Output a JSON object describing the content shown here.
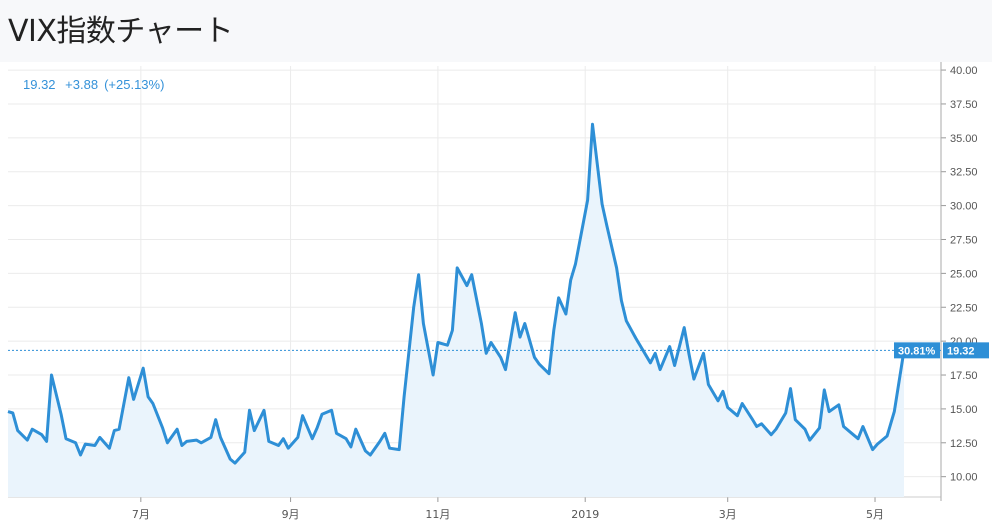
{
  "title": "VIX指数チャート",
  "readout": {
    "value": "19.32",
    "change": "+3.88",
    "pct": "(+25.13%)"
  },
  "badges": {
    "pct": "30.81%",
    "value": "19.32"
  },
  "colors": {
    "line": "#2e8fd6",
    "fill": "#eaf4fc",
    "grid": "#e8e8e8",
    "badge": "#2e8fd6",
    "text": "#3592d9"
  },
  "chart_data": {
    "type": "area",
    "yticks": [
      "10.00",
      "12.50",
      "15.00",
      "17.50",
      "20.00",
      "22.50",
      "25.00",
      "27.50",
      "30.00",
      "32.50",
      "35.00",
      "37.50",
      "40.00"
    ],
    "ylim": [
      8.5,
      40.3
    ],
    "xlabels": [
      "7月",
      "9月",
      "11月",
      "2019",
      "3月",
      "5月"
    ],
    "x": [
      "2018-05-07",
      "2018-05-09",
      "2018-05-11",
      "2018-05-15",
      "2018-05-17",
      "2018-05-21",
      "2018-05-23",
      "2018-05-25",
      "2018-05-29",
      "2018-05-31",
      "2018-06-04",
      "2018-06-06",
      "2018-06-08",
      "2018-06-12",
      "2018-06-14",
      "2018-06-18",
      "2018-06-20",
      "2018-06-22",
      "2018-06-26",
      "2018-06-28",
      "2018-07-02",
      "2018-07-04",
      "2018-07-06",
      "2018-07-10",
      "2018-07-12",
      "2018-07-16",
      "2018-07-18",
      "2018-07-20",
      "2018-07-24",
      "2018-07-26",
      "2018-07-30",
      "2018-08-01",
      "2018-08-03",
      "2018-08-07",
      "2018-08-09",
      "2018-08-13",
      "2018-08-15",
      "2018-08-17",
      "2018-08-21",
      "2018-08-23",
      "2018-08-27",
      "2018-08-29",
      "2018-08-31",
      "2018-09-04",
      "2018-09-06",
      "2018-09-10",
      "2018-09-12",
      "2018-09-14",
      "2018-09-18",
      "2018-09-20",
      "2018-09-24",
      "2018-09-26",
      "2018-09-28",
      "2018-10-02",
      "2018-10-04",
      "2018-10-08",
      "2018-10-10",
      "2018-10-12",
      "2018-10-16",
      "2018-10-18",
      "2018-10-22",
      "2018-10-24",
      "2018-10-26",
      "2018-10-30",
      "2018-11-01",
      "2018-11-05",
      "2018-11-07",
      "2018-11-09",
      "2018-11-13",
      "2018-11-15",
      "2018-11-19",
      "2018-11-21",
      "2018-11-23",
      "2018-11-27",
      "2018-11-29",
      "2018-12-03",
      "2018-12-05",
      "2018-12-07",
      "2018-12-11",
      "2018-12-13",
      "2018-12-17",
      "2018-12-19",
      "2018-12-21",
      "2018-12-24",
      "2018-12-26",
      "2018-12-28",
      "2019-01-02",
      "2019-01-04",
      "2019-01-08",
      "2019-01-10",
      "2019-01-14",
      "2019-01-16",
      "2019-01-18",
      "2019-01-22",
      "2019-01-24",
      "2019-01-28",
      "2019-01-30",
      "2019-02-01",
      "2019-02-05",
      "2019-02-07",
      "2019-02-11",
      "2019-02-13",
      "2019-02-15",
      "2019-02-19",
      "2019-02-21",
      "2019-02-25",
      "2019-02-27",
      "2019-03-01",
      "2019-03-05",
      "2019-03-07",
      "2019-03-11",
      "2019-03-13",
      "2019-03-15",
      "2019-03-19",
      "2019-03-21",
      "2019-03-25",
      "2019-03-27",
      "2019-03-29",
      "2019-04-02",
      "2019-04-04",
      "2019-04-08",
      "2019-04-10",
      "2019-04-12",
      "2019-04-16",
      "2019-04-18",
      "2019-04-22",
      "2019-04-24",
      "2019-04-26",
      "2019-04-30",
      "2019-05-02",
      "2019-05-06",
      "2019-05-09",
      "2019-05-13"
    ],
    "values": [
      14.8,
      14.7,
      13.4,
      12.7,
      13.5,
      13.1,
      12.6,
      17.5,
      14.6,
      12.8,
      12.5,
      11.6,
      12.4,
      12.3,
      12.9,
      12.1,
      13.4,
      13.5,
      17.3,
      15.7,
      18.0,
      15.9,
      15.4,
      13.6,
      12.5,
      13.5,
      12.3,
      12.6,
      12.7,
      12.5,
      12.9,
      14.2,
      12.9,
      11.3,
      11.0,
      11.8,
      14.9,
      13.4,
      14.9,
      12.6,
      12.3,
      12.8,
      12.1,
      12.9,
      14.5,
      12.8,
      13.6,
      14.6,
      14.9,
      13.2,
      12.8,
      12.2,
      13.5,
      11.9,
      11.6,
      12.6,
      13.2,
      12.1,
      12.0,
      15.9,
      22.5,
      24.9,
      21.3,
      17.5,
      19.9,
      19.7,
      20.8,
      25.4,
      24.1,
      24.9,
      21.3,
      19.1,
      19.9,
      18.8,
      17.9,
      22.1,
      20.3,
      21.3,
      18.8,
      18.3,
      17.6,
      20.8,
      23.2,
      22.0,
      24.5,
      25.7,
      30.4,
      36.0,
      30.1,
      28.5,
      25.4,
      23.0,
      21.5,
      20.2,
      19.6,
      18.4,
      19.1,
      17.9,
      19.6,
      18.2,
      21.0,
      19.0,
      17.2,
      19.1,
      16.8,
      15.6,
      16.3,
      15.1,
      14.5,
      15.4,
      14.3,
      13.7,
      13.9,
      13.1,
      13.5,
      14.7,
      16.5,
      14.2,
      13.5,
      12.7,
      13.6,
      16.4,
      14.8,
      15.3,
      13.7,
      13.1,
      12.8,
      13.7,
      12.0,
      12.4,
      13.0,
      14.8,
      19.32
    ]
  }
}
